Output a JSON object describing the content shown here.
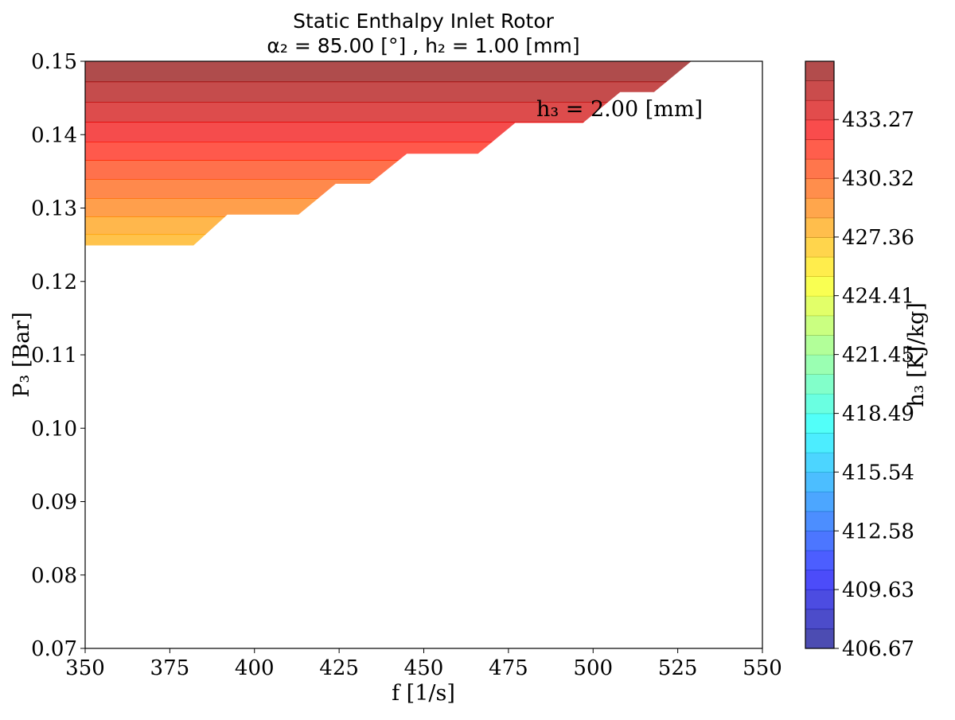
{
  "chart_data": {
    "type": "contour",
    "title": "Static Enthalpy Inlet Rotor",
    "subtitle": "α₂ = 85.00 [°] , h₂ = 1.00 [mm]",
    "xlabel": "f [1/s]",
    "ylabel": "P₃ [Bar]",
    "xlim": [
      350,
      550
    ],
    "ylim": [
      0.07,
      0.15
    ],
    "xticks": [
      "350",
      "375",
      "400",
      "425",
      "450",
      "475",
      "500",
      "525",
      "550"
    ],
    "yticks": [
      "0.07",
      "0.08",
      "0.09",
      "0.10",
      "0.11",
      "0.12",
      "0.13",
      "0.14",
      "0.15"
    ],
    "annotation": "h₃ = 2.00 [mm]",
    "colorbar": {
      "label": "h₃ [KJ/kg]",
      "range": [
        406.67,
        436.2
      ],
      "levels": 30,
      "ticks": [
        "406.67",
        "409.63",
        "412.58",
        "415.54",
        "418.49",
        "421.45",
        "424.41",
        "427.36",
        "430.32",
        "433.27"
      ],
      "colormap": "jet",
      "alpha": 0.7
    },
    "region_boundary": [
      [
        350,
        0.1249
      ],
      [
        382,
        0.1249
      ],
      [
        392,
        0.1291
      ],
      [
        413,
        0.1291
      ],
      [
        424,
        0.1333
      ],
      [
        434,
        0.1333
      ],
      [
        445,
        0.1374
      ],
      [
        466,
        0.1374
      ],
      [
        477,
        0.1416
      ],
      [
        497,
        0.1416
      ],
      [
        508,
        0.1458
      ],
      [
        518,
        0.1458
      ],
      [
        529,
        0.15
      ]
    ],
    "bands": [
      {
        "p_low": 0.1249,
        "p_high": 0.1264,
        "h": 427.6
      },
      {
        "p_low": 0.1264,
        "p_high": 0.1288,
        "h": 428.1
      },
      {
        "p_low": 0.1288,
        "p_high": 0.1313,
        "h": 429.1
      },
      {
        "p_low": 0.1313,
        "p_high": 0.1339,
        "h": 430.0
      },
      {
        "p_low": 0.1339,
        "p_high": 0.1365,
        "h": 431.0
      },
      {
        "p_low": 0.1365,
        "p_high": 0.139,
        "h": 432.0
      },
      {
        "p_low": 0.139,
        "p_high": 0.1417,
        "h": 432.9
      },
      {
        "p_low": 0.1417,
        "p_high": 0.1444,
        "h": 433.9
      },
      {
        "p_low": 0.1444,
        "p_high": 0.1472,
        "h": 434.9
      },
      {
        "p_low": 0.1472,
        "p_high": 0.15,
        "h": 435.8
      }
    ]
  }
}
